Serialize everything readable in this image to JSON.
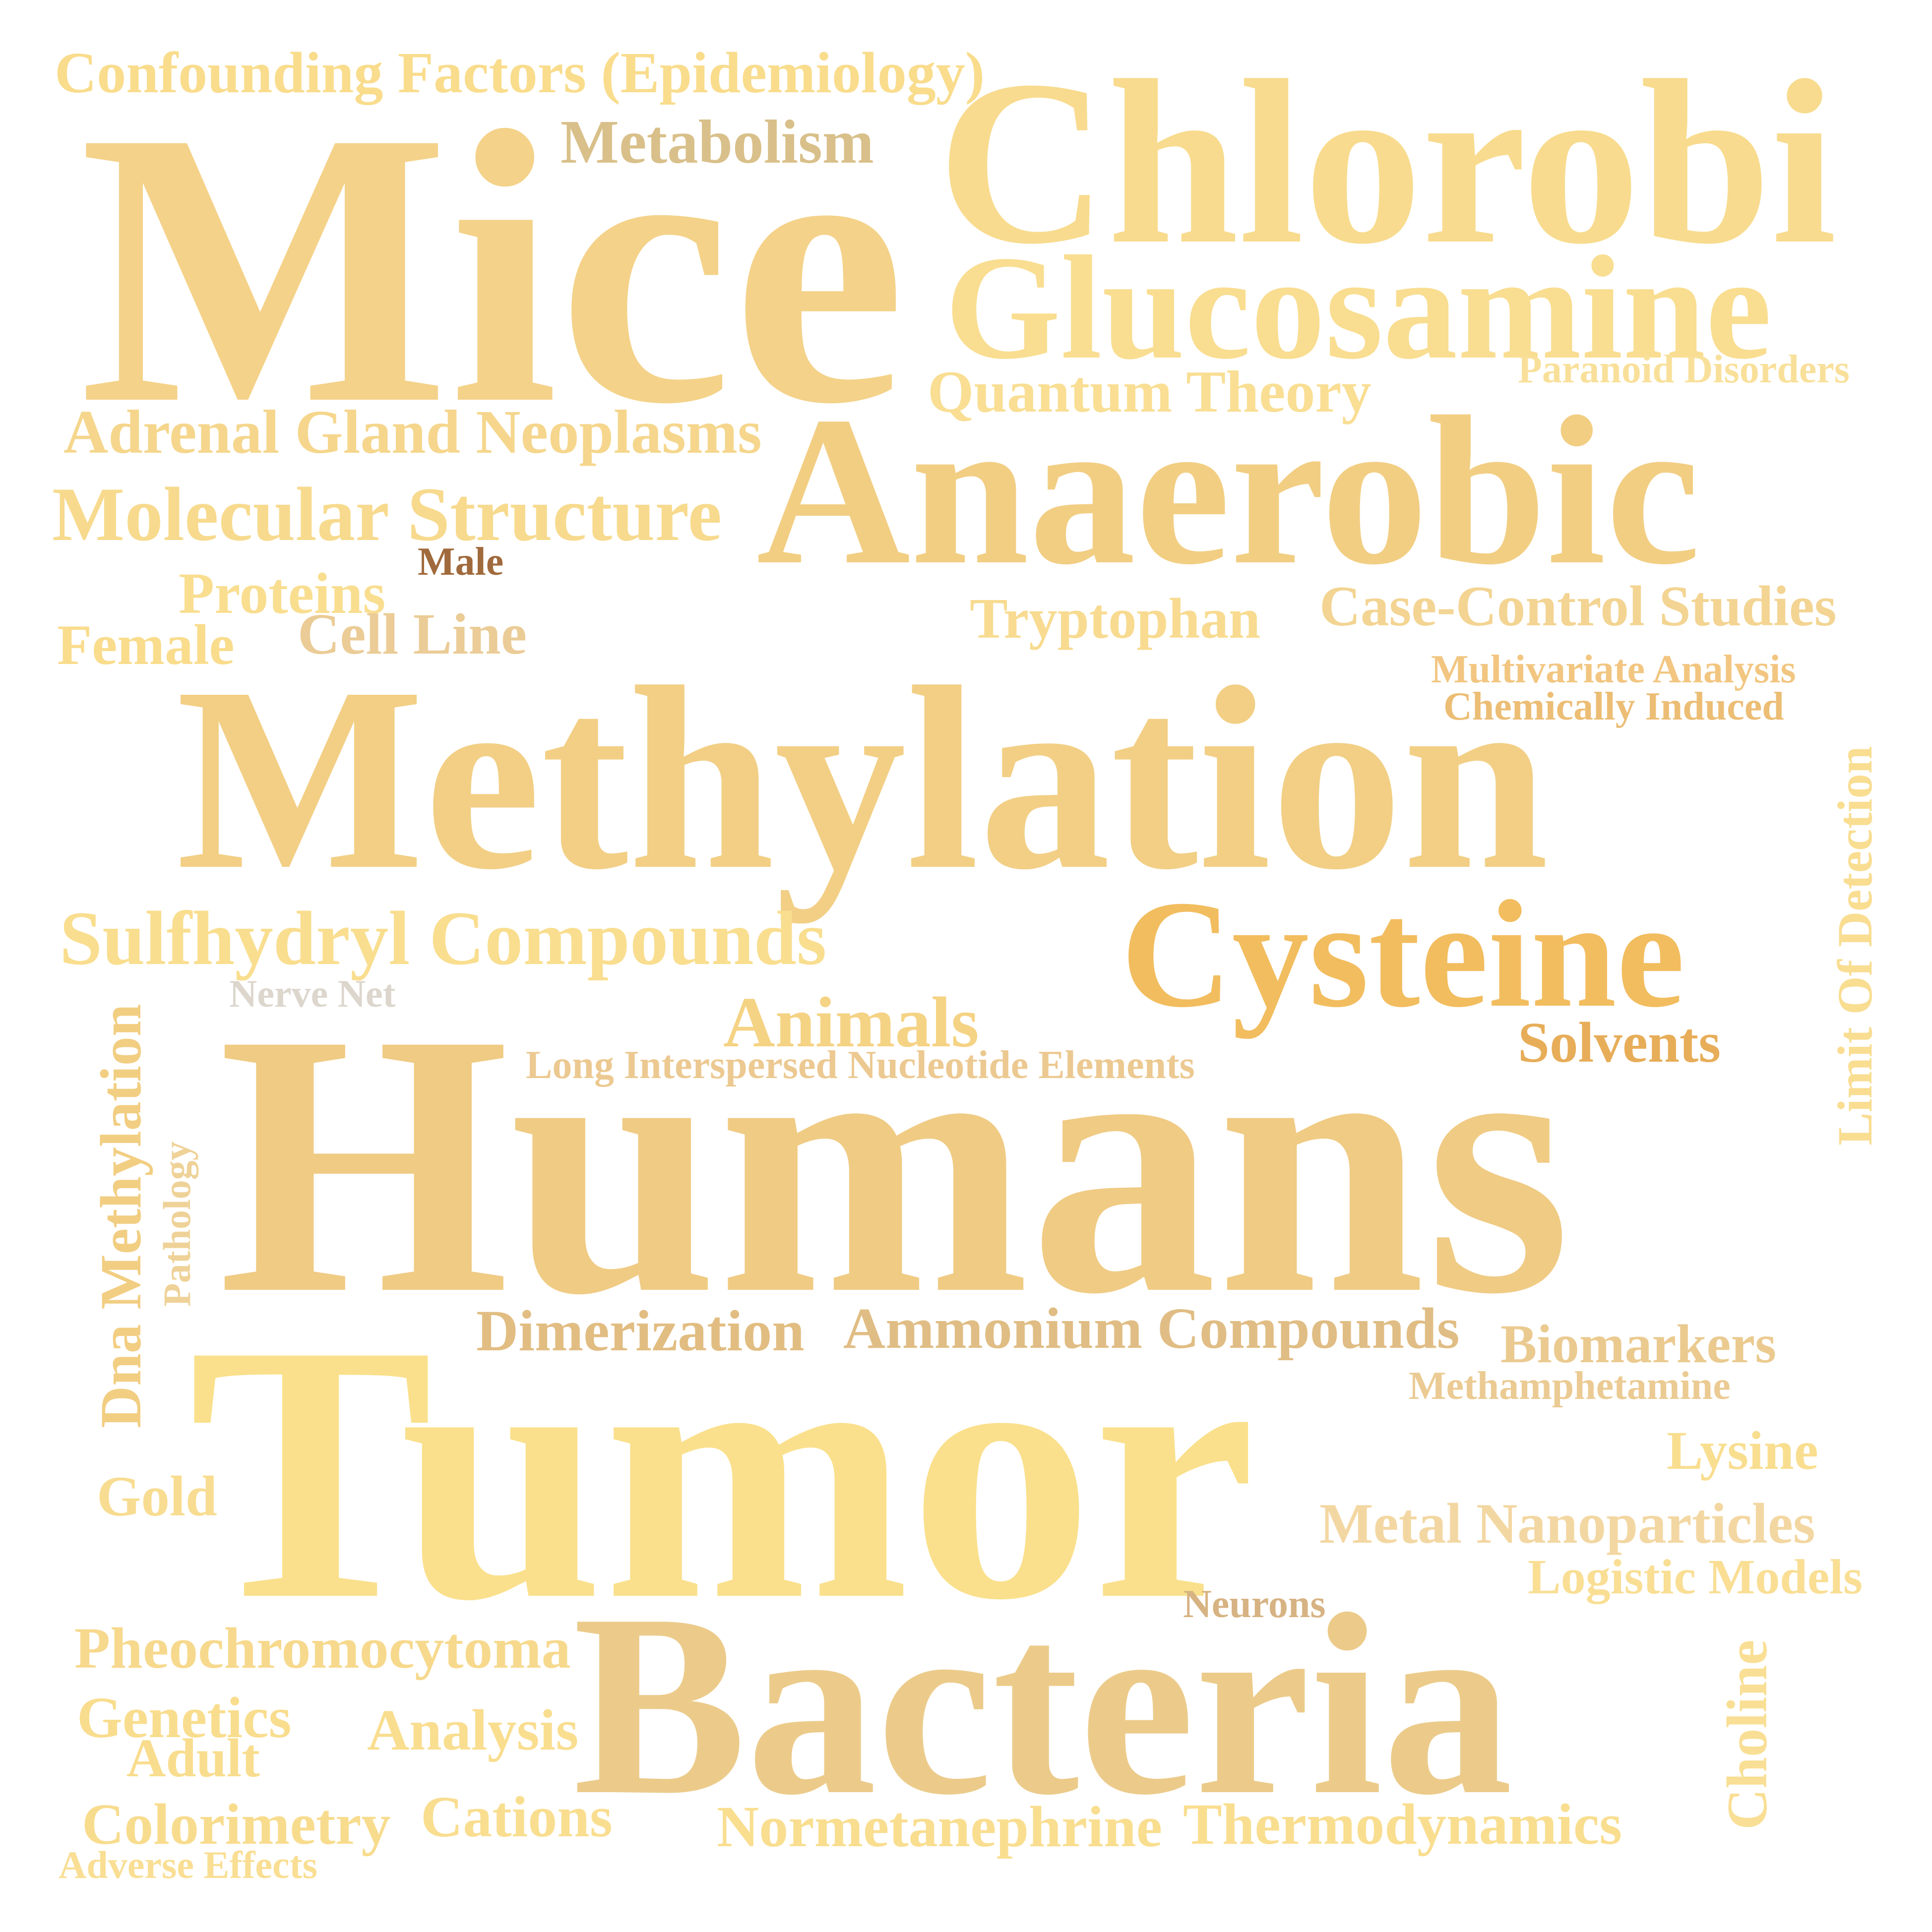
{
  "words": {
    "confounding_factors": {
      "text": "Confounding Factors (Epidemiology)",
      "color": "#f9dc8c"
    },
    "metabolism": {
      "text": "Metabolism",
      "color": "#d9c08a"
    },
    "chlorobi": {
      "text": "Chlorobi",
      "color": "#f8db8e"
    },
    "mice": {
      "text": "Mice",
      "color": "#f4d289"
    },
    "glucosamine": {
      "text": "Glucosamine",
      "color": "#f9dd90"
    },
    "paranoid_disorders": {
      "text": "Paranoid Disorders",
      "color": "#f9e09a"
    },
    "quantum_theory": {
      "text": "Quantum Theory",
      "color": "#f9de93"
    },
    "adrenal_gland_neoplasms": {
      "text": "Adrenal Gland Neoplasms",
      "color": "#f5d68c"
    },
    "anaerobic": {
      "text": "Anaerobic",
      "color": "#f2ce83"
    },
    "molecular_structure": {
      "text": "Molecular Structure",
      "color": "#f7da8d"
    },
    "male": {
      "text": "Male",
      "color": "#a06a3c"
    },
    "proteins": {
      "text": "Proteins",
      "color": "#f9de90"
    },
    "female": {
      "text": "Female",
      "color": "#f9dc8c"
    },
    "cell_line": {
      "text": "Cell Line",
      "color": "#ebcc96"
    },
    "tryptophan": {
      "text": "Tryptophan",
      "color": "#f8db90"
    },
    "case_control_studies": {
      "text": "Case-Control Studies",
      "color": "#f3d492"
    },
    "multivariate_analysis": {
      "text": "Multivariate Analysis",
      "color": "#f2c681"
    },
    "chemically_induced": {
      "text": "Chemically Induced",
      "color": "#ecbd74"
    },
    "methylation": {
      "text": "Methylation",
      "color": "#f2cf85"
    },
    "limit_of_detection": {
      "text": "Limit Of Detection",
      "color": "#f9dd91"
    },
    "sulfhydryl_compounds": {
      "text": "Sulfhydryl Compounds",
      "color": "#f9de8f"
    },
    "cysteine": {
      "text": "Cysteine",
      "color": "#f2bd5f"
    },
    "nerve_net": {
      "text": "Nerve Net",
      "color": "#dcd6cd"
    },
    "animals": {
      "text": "Animals",
      "color": "#f5d384"
    },
    "solvents": {
      "text": "Solvents",
      "color": "#e7ad58"
    },
    "long_interspersed": {
      "text": "Long Interspersed Nucleotide Elements",
      "color": "#ecc991"
    },
    "dna_methylation": {
      "text": "Dna Methylation",
      "color": "#f2ce82"
    },
    "pathology": {
      "text": "Pathology",
      "color": "#efd298"
    },
    "humans": {
      "text": "Humans",
      "color": "#f0cb84"
    },
    "dimerization": {
      "text": "Dimerization",
      "color": "#e2bd82"
    },
    "ammonium_compounds": {
      "text": "Ammonium Compounds",
      "color": "#e0bd84"
    },
    "biomarkers": {
      "text": "Biomarkers",
      "color": "#ebca90"
    },
    "methamphetamine": {
      "text": "Methamphetamine",
      "color": "#ebcb93"
    },
    "tumor": {
      "text": "Tumor",
      "color": "#fae08c"
    },
    "lysine": {
      "text": "Lysine",
      "color": "#f9de90"
    },
    "gold": {
      "text": "Gold",
      "color": "#f8dc91"
    },
    "metal_nanoparticles": {
      "text": "Metal Nanoparticles",
      "color": "#f3d7a2"
    },
    "logistic_models": {
      "text": "Logistic Models",
      "color": "#f9de94"
    },
    "neurons": {
      "text": "Neurons",
      "color": "#d7b383"
    },
    "pheochromocytoma": {
      "text": "Pheochromocytoma",
      "color": "#f7d98d"
    },
    "bacteria": {
      "text": "Bacteria",
      "color": "#eccb8a"
    },
    "choline": {
      "text": "Choline",
      "color": "#f9df95"
    },
    "genetics": {
      "text": "Genetics",
      "color": "#f9dd8e"
    },
    "analysis": {
      "text": "Analysis",
      "color": "#f9de90"
    },
    "adult": {
      "text": "Adult",
      "color": "#f9dd8e"
    },
    "colorimetry": {
      "text": "Colorimetry",
      "color": "#f8dc8e"
    },
    "cations": {
      "text": "Cations",
      "color": "#f9de90"
    },
    "normetanephrine": {
      "text": "Normetanephrine",
      "color": "#f9de90"
    },
    "thermodynamics": {
      "text": "Thermodynamics",
      "color": "#f9de90"
    },
    "adverse_effects": {
      "text": "Adverse Effects",
      "color": "#f9de93"
    }
  }
}
